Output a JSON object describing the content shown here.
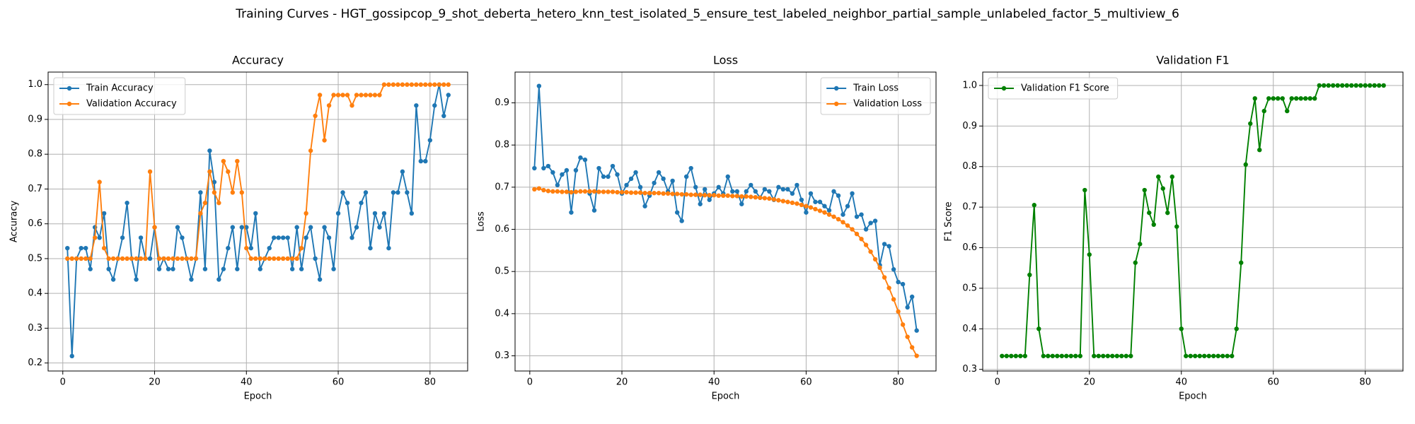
{
  "title": "Training Curves - HGT_gossipcop_9_shot_deberta_hetero_knn_test_isolated_5_ensure_test_labeled_neighbor_partial_sample_unlabeled_factor_5_multiview_6",
  "chart_data": [
    {
      "type": "line",
      "title": "Accuracy",
      "xlabel": "Epoch",
      "ylabel": "Accuracy",
      "legend": "upper left",
      "grid": true,
      "xlim": [
        -3.2,
        88.2
      ],
      "ylim": [
        0.177,
        1.036
      ],
      "xticks": [
        0,
        20,
        40,
        60,
        80
      ],
      "yticks": [
        0.2,
        0.3,
        0.4,
        0.5,
        0.6,
        0.7,
        0.8,
        0.9,
        {
          "value": 1,
          "label": "1.0"
        }
      ],
      "x": [
        1,
        2,
        3,
        4,
        5,
        6,
        7,
        8,
        9,
        10,
        11,
        12,
        13,
        14,
        15,
        16,
        17,
        18,
        19,
        20,
        21,
        22,
        23,
        24,
        25,
        26,
        27,
        28,
        29,
        30,
        31,
        32,
        33,
        34,
        35,
        36,
        37,
        38,
        39,
        40,
        41,
        42,
        43,
        44,
        45,
        46,
        47,
        48,
        49,
        50,
        51,
        52,
        53,
        54,
        55,
        56,
        57,
        58,
        59,
        60,
        61,
        62,
        63,
        64,
        65,
        66,
        67,
        68,
        69,
        70,
        71,
        72,
        73,
        74,
        75,
        76,
        77,
        78,
        79,
        80,
        81,
        82,
        83,
        84
      ],
      "series": [
        {
          "name": "Train Accuracy",
          "color": "#1f77b4",
          "values": [
            0.53,
            0.22,
            0.5,
            0.53,
            0.53,
            0.47,
            0.59,
            0.56,
            0.63,
            0.47,
            0.44,
            0.5,
            0.56,
            0.66,
            0.5,
            0.44,
            0.56,
            0.5,
            0.5,
            0.59,
            0.47,
            0.5,
            0.47,
            0.47,
            0.59,
            0.56,
            0.5,
            0.44,
            0.5,
            0.69,
            0.47,
            0.81,
            0.72,
            0.44,
            0.47,
            0.53,
            0.59,
            0.47,
            0.59,
            0.59,
            0.53,
            0.63,
            0.47,
            0.5,
            0.53,
            0.56,
            0.56,
            0.56,
            0.56,
            0.47,
            0.59,
            0.47,
            0.56,
            0.59,
            0.5,
            0.44,
            0.59,
            0.56,
            0.47,
            0.63,
            0.69,
            0.66,
            0.56,
            0.59,
            0.66,
            0.69,
            0.53,
            0.63,
            0.59,
            0.63,
            0.53,
            0.69,
            0.69,
            0.75,
            0.69,
            0.63,
            0.94,
            0.78,
            0.78,
            0.84,
            0.94,
            1.0,
            0.91,
            0.97
          ]
        },
        {
          "name": "Validation Accuracy",
          "color": "#ff7f0e",
          "values": [
            0.5,
            0.5,
            0.5,
            0.5,
            0.5,
            0.5,
            0.56,
            0.72,
            0.53,
            0.5,
            0.5,
            0.5,
            0.5,
            0.5,
            0.5,
            0.5,
            0.5,
            0.5,
            0.75,
            0.59,
            0.5,
            0.5,
            0.5,
            0.5,
            0.5,
            0.5,
            0.5,
            0.5,
            0.5,
            0.63,
            0.66,
            0.75,
            0.69,
            0.66,
            0.78,
            0.75,
            0.69,
            0.78,
            0.69,
            0.53,
            0.5,
            0.5,
            0.5,
            0.5,
            0.5,
            0.5,
            0.5,
            0.5,
            0.5,
            0.5,
            0.5,
            0.53,
            0.63,
            0.81,
            0.91,
            0.97,
            0.84,
            0.94,
            0.97,
            0.97,
            0.97,
            0.97,
            0.94,
            0.97,
            0.97,
            0.97,
            0.97,
            0.97,
            0.97,
            1.0,
            1.0,
            1.0,
            1.0,
            1.0,
            1.0,
            1.0,
            1.0,
            1.0,
            1.0,
            1.0,
            1.0,
            1.0,
            1.0,
            1.0
          ]
        }
      ]
    },
    {
      "type": "line",
      "title": "Loss",
      "xlabel": "Epoch",
      "ylabel": "Loss",
      "legend": "upper right",
      "grid": true,
      "xlim": [
        -3.2,
        88.2
      ],
      "ylim": [
        0.264,
        0.973
      ],
      "xticks": [
        0,
        20,
        40,
        60,
        80
      ],
      "yticks": [
        0.3,
        0.4,
        0.5,
        0.6,
        0.7,
        0.8,
        0.9
      ],
      "x": [
        1,
        2,
        3,
        4,
        5,
        6,
        7,
        8,
        9,
        10,
        11,
        12,
        13,
        14,
        15,
        16,
        17,
        18,
        19,
        20,
        21,
        22,
        23,
        24,
        25,
        26,
        27,
        28,
        29,
        30,
        31,
        32,
        33,
        34,
        35,
        36,
        37,
        38,
        39,
        40,
        41,
        42,
        43,
        44,
        45,
        46,
        47,
        48,
        49,
        50,
        51,
        52,
        53,
        54,
        55,
        56,
        57,
        58,
        59,
        60,
        61,
        62,
        63,
        64,
        65,
        66,
        67,
        68,
        69,
        70,
        71,
        72,
        73,
        74,
        75,
        76,
        77,
        78,
        79,
        80,
        81,
        82,
        83,
        84
      ],
      "series": [
        {
          "name": "Train Loss",
          "color": "#1f77b4",
          "values": [
            0.745,
            0.94,
            0.745,
            0.75,
            0.735,
            0.705,
            0.73,
            0.74,
            0.64,
            0.74,
            0.77,
            0.765,
            0.685,
            0.645,
            0.745,
            0.725,
            0.725,
            0.75,
            0.73,
            0.685,
            0.705,
            0.72,
            0.735,
            0.7,
            0.655,
            0.68,
            0.71,
            0.735,
            0.72,
            0.69,
            0.715,
            0.64,
            0.62,
            0.725,
            0.745,
            0.7,
            0.66,
            0.695,
            0.67,
            0.685,
            0.7,
            0.685,
            0.725,
            0.69,
            0.69,
            0.66,
            0.69,
            0.705,
            0.69,
            0.675,
            0.695,
            0.69,
            0.67,
            0.7,
            0.695,
            0.695,
            0.685,
            0.705,
            0.67,
            0.64,
            0.685,
            0.665,
            0.665,
            0.655,
            0.645,
            0.69,
            0.68,
            0.635,
            0.655,
            0.685,
            0.63,
            0.635,
            0.6,
            0.615,
            0.62,
            0.515,
            0.565,
            0.56,
            0.505,
            0.475,
            0.47,
            0.415,
            0.44,
            0.36
          ]
        },
        {
          "name": "Validation Loss",
          "color": "#ff7f0e",
          "values": [
            0.695,
            0.697,
            0.693,
            0.691,
            0.69,
            0.69,
            0.689,
            0.689,
            0.688,
            0.689,
            0.69,
            0.69,
            0.69,
            0.69,
            0.689,
            0.689,
            0.689,
            0.689,
            0.688,
            0.688,
            0.688,
            0.687,
            0.687,
            0.687,
            0.686,
            0.686,
            0.686,
            0.686,
            0.685,
            0.685,
            0.684,
            0.684,
            0.683,
            0.683,
            0.682,
            0.682,
            0.682,
            0.681,
            0.681,
            0.681,
            0.68,
            0.68,
            0.68,
            0.679,
            0.679,
            0.678,
            0.678,
            0.677,
            0.676,
            0.675,
            0.674,
            0.673,
            0.671,
            0.669,
            0.667,
            0.665,
            0.663,
            0.661,
            0.658,
            0.655,
            0.652,
            0.648,
            0.644,
            0.64,
            0.635,
            0.63,
            0.624,
            0.617,
            0.609,
            0.6,
            0.589,
            0.577,
            0.563,
            0.547,
            0.529,
            0.509,
            0.486,
            0.461,
            0.434,
            0.405,
            0.374,
            0.345,
            0.32,
            0.3
          ]
        }
      ]
    },
    {
      "type": "line",
      "title": "Validation F1",
      "xlabel": "Epoch",
      "ylabel": "F1 Score",
      "legend": "upper left",
      "grid": true,
      "xlim": [
        -3.2,
        88.2
      ],
      "ylim": [
        0.296,
        1.033
      ],
      "xticks": [
        0,
        20,
        40,
        60,
        80
      ],
      "yticks": [
        0.3,
        0.4,
        0.5,
        0.6,
        0.7,
        0.8,
        0.9,
        {
          "value": 1,
          "label": "1.0"
        }
      ],
      "x": [
        1,
        2,
        3,
        4,
        5,
        6,
        7,
        8,
        9,
        10,
        11,
        12,
        13,
        14,
        15,
        16,
        17,
        18,
        19,
        20,
        21,
        22,
        23,
        24,
        25,
        26,
        27,
        28,
        29,
        30,
        31,
        32,
        33,
        34,
        35,
        36,
        37,
        38,
        39,
        40,
        41,
        42,
        43,
        44,
        45,
        46,
        47,
        48,
        49,
        50,
        51,
        52,
        53,
        54,
        55,
        56,
        57,
        58,
        59,
        60,
        61,
        62,
        63,
        64,
        65,
        66,
        67,
        68,
        69,
        70,
        71,
        72,
        73,
        74,
        75,
        76,
        77,
        78,
        79,
        80,
        81,
        82,
        83,
        84
      ],
      "series": [
        {
          "name": "Validation F1 Score",
          "color": "#008000",
          "values": [
            0.333,
            0.333,
            0.333,
            0.333,
            0.333,
            0.333,
            0.533,
            0.705,
            0.4,
            0.333,
            0.333,
            0.333,
            0.333,
            0.333,
            0.333,
            0.333,
            0.333,
            0.333,
            0.742,
            0.583,
            0.333,
            0.333,
            0.333,
            0.333,
            0.333,
            0.333,
            0.333,
            0.333,
            0.333,
            0.563,
            0.609,
            0.742,
            0.686,
            0.657,
            0.775,
            0.746,
            0.686,
            0.775,
            0.652,
            0.4,
            0.333,
            0.333,
            0.333,
            0.333,
            0.333,
            0.333,
            0.333,
            0.333,
            0.333,
            0.333,
            0.333,
            0.4,
            0.563,
            0.805,
            0.906,
            0.968,
            0.841,
            0.937,
            0.968,
            0.968,
            0.968,
            0.968,
            0.937,
            0.968,
            0.968,
            0.968,
            0.968,
            0.968,
            0.968,
            1.0,
            1.0,
            1.0,
            1.0,
            1.0,
            1.0,
            1.0,
            1.0,
            1.0,
            1.0,
            1.0,
            1.0,
            1.0,
            1.0,
            1.0
          ]
        }
      ]
    }
  ]
}
